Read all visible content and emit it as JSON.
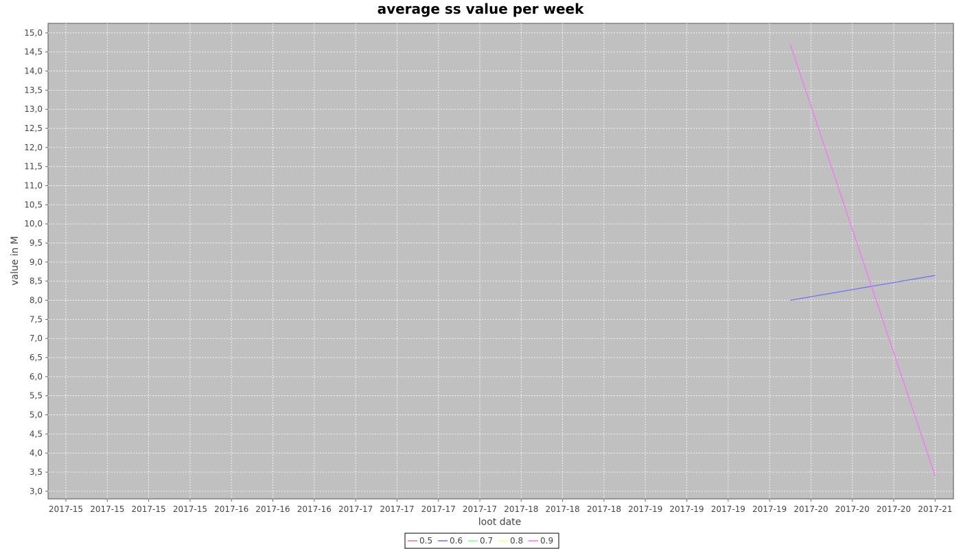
{
  "chart_data": {
    "type": "line",
    "title": "average ss value per week",
    "xlabel": "loot date",
    "ylabel": "value in M",
    "x_tick_labels": [
      "2017-15",
      "2017-15",
      "2017-15",
      "2017-15",
      "2017-16",
      "2017-16",
      "2017-16",
      "2017-17",
      "2017-17",
      "2017-17",
      "2017-17",
      "2017-18",
      "2017-18",
      "2017-18",
      "2017-19",
      "2017-19",
      "2017-19",
      "2017-19",
      "2017-20",
      "2017-20",
      "2017-20",
      "2017-21"
    ],
    "y_tick_labels": [
      "3,0",
      "3,5",
      "4,0",
      "4,5",
      "5,0",
      "5,5",
      "6,0",
      "6,5",
      "7,0",
      "7,5",
      "8,0",
      "8,5",
      "9,0",
      "9,5",
      "10,0",
      "10,5",
      "11,0",
      "11,5",
      "12,0",
      "12,5",
      "13,0",
      "13,5",
      "14,0",
      "14,5",
      "15,0"
    ],
    "ylim": [
      2.8,
      15.25
    ],
    "y_ticks": [
      3.0,
      3.5,
      4.0,
      4.5,
      5.0,
      5.5,
      6.0,
      6.5,
      7.0,
      7.5,
      8.0,
      8.5,
      9.0,
      9.5,
      10.0,
      10.5,
      11.0,
      11.5,
      12.0,
      12.5,
      13.0,
      13.5,
      14.0,
      14.5,
      15.0
    ],
    "grid": true,
    "background_color": "#c0c0c0",
    "legend_position": "bottom-center",
    "series": [
      {
        "name": "0.5",
        "color": "#ff6a8a",
        "points": []
      },
      {
        "name": "0.6",
        "color": "#6a6aff",
        "points": [
          [
            17.5,
            8.0
          ],
          [
            21.0,
            8.65
          ]
        ]
      },
      {
        "name": "0.7",
        "color": "#8aff8a",
        "points": []
      },
      {
        "name": "0.8",
        "color": "#ffff7a",
        "points": []
      },
      {
        "name": "0.9",
        "color": "#ff6aff",
        "points": [
          [
            17.5,
            14.7
          ],
          [
            21.0,
            3.4
          ]
        ]
      }
    ]
  }
}
